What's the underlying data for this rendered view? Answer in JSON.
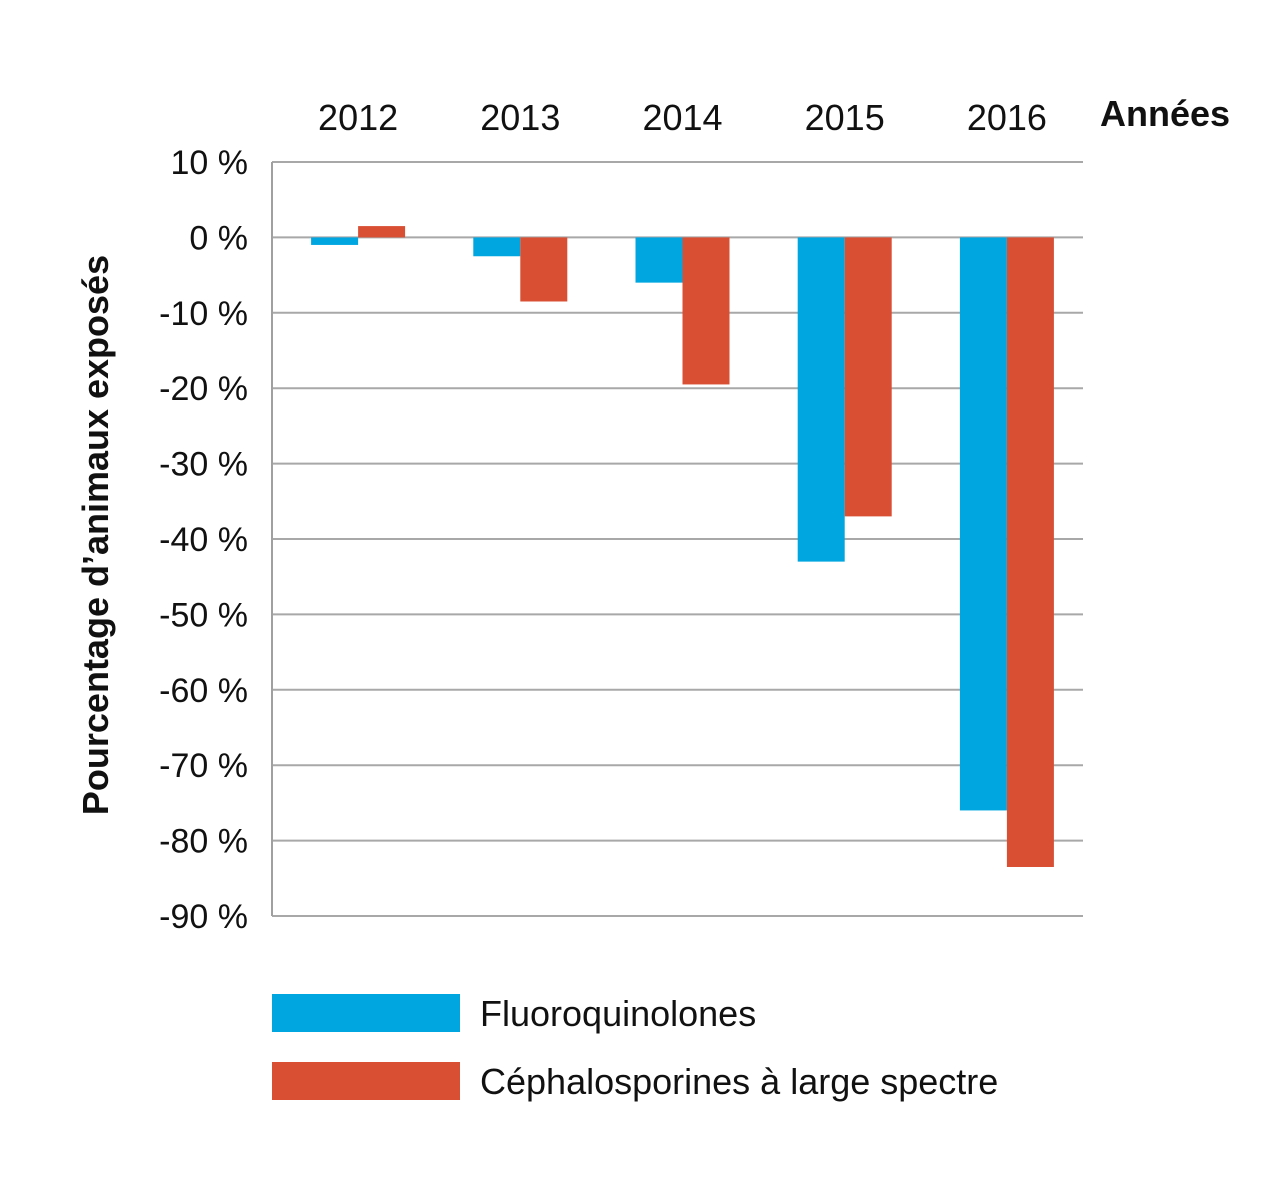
{
  "chart_data": {
    "type": "bar",
    "categories": [
      "2012",
      "2013",
      "2014",
      "2015",
      "2016"
    ],
    "series": [
      {
        "name": "Fluoroquinolones",
        "color": "#00a6e0",
        "values": [
          -1,
          -2.5,
          -6,
          -43,
          -76
        ]
      },
      {
        "name": "Céphalosporines à large spectre",
        "color": "#d94f33",
        "values": [
          1.5,
          -8.5,
          -19.5,
          -37,
          -83.5
        ]
      }
    ],
    "ylabel": "Pourcentage d’animaux exposés",
    "xlabel": "Années",
    "ylim": [
      -90,
      10
    ],
    "yticks": [
      10,
      0,
      -10,
      -20,
      -30,
      -40,
      -50,
      -60,
      -70,
      -80,
      -90
    ],
    "ytick_labels": [
      "10 %",
      "0 %",
      "-10 %",
      "-20 %",
      "-30 %",
      "-40 %",
      "-50 %",
      "-60 %",
      "-70 %",
      "-80 %",
      "-90 %"
    ],
    "x_axis_position": "top",
    "grid": true,
    "legend_position": "bottom-left"
  }
}
